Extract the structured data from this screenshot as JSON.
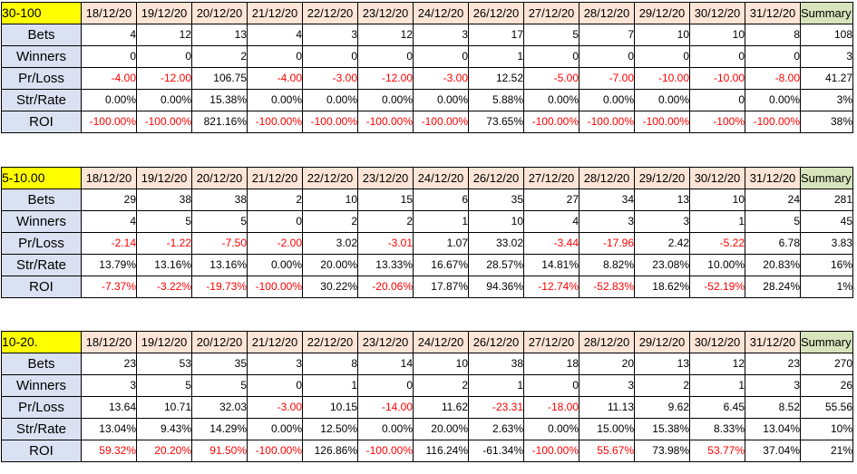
{
  "colors": {
    "title_bg": "#FFFF00",
    "date_header_bg": "#FCE4D6",
    "summary_header_bg": "#D8E4BC",
    "label_bg": "#D9E1F2",
    "negative_text": "#FF0000",
    "text": "#000000",
    "border": "#000000"
  },
  "layout_widths": {
    "label_col": 88,
    "date_col": 61,
    "summary_col": 58
  },
  "dates": [
    "18/12/20",
    "19/12/20",
    "20/12/20",
    "21/12/20",
    "22/12/20",
    "23/12/20",
    "24/12/20",
    "26/12/20",
    "27/12/20",
    "28/12/20",
    "29/12/20",
    "30/12/20",
    "31/12/20"
  ],
  "summary_header": "Summary",
  "row_labels": [
    "Bets",
    "Winners",
    "Pr/Loss",
    "Str/Rate",
    "ROI"
  ],
  "tables": [
    {
      "title": "30-100",
      "rows": [
        {
          "label": "Bets",
          "values": [
            "4",
            "12",
            "13",
            "4",
            "3",
            "12",
            "3",
            "17",
            "5",
            "7",
            "10",
            "10",
            "8",
            "108"
          ],
          "red": [
            0,
            0,
            0,
            0,
            0,
            0,
            0,
            0,
            0,
            0,
            0,
            0,
            0,
            0
          ]
        },
        {
          "label": "Winners",
          "values": [
            "0",
            "0",
            "2",
            "0",
            "0",
            "0",
            "0",
            "1",
            "0",
            "0",
            "0",
            "0",
            "0",
            "3"
          ],
          "red": [
            0,
            0,
            0,
            0,
            0,
            0,
            0,
            0,
            0,
            0,
            0,
            0,
            0,
            0
          ]
        },
        {
          "label": "Pr/Loss",
          "values": [
            "-4.00",
            "-12.00",
            "106.75",
            "-4.00",
            "-3.00",
            "-12.00",
            "-3.00",
            "12.52",
            "-5.00",
            "-7.00",
            "-10.00",
            "-10.00",
            "-8.00",
            "41.27"
          ],
          "red": [
            1,
            1,
            0,
            1,
            1,
            1,
            1,
            0,
            1,
            1,
            1,
            1,
            1,
            0
          ]
        },
        {
          "label": "Str/Rate",
          "values": [
            "0.00%",
            "0.00%",
            "15.38%",
            "0.00%",
            "0.00%",
            "0.00%",
            "0.00%",
            "5.88%",
            "0.00%",
            "0.00%",
            "0.00%",
            "0",
            "0.00%",
            "3%"
          ],
          "red": [
            0,
            0,
            0,
            0,
            0,
            0,
            0,
            0,
            0,
            0,
            0,
            0,
            0,
            0
          ]
        },
        {
          "label": "ROI",
          "values": [
            "-100.00%",
            "-100.00%",
            "821.16%",
            "-100.00%",
            "-100.00%",
            "-100.00%",
            "-100.00%",
            "73.65%",
            "-100.00%",
            "-100.00%",
            "-100.00%",
            "-100%",
            "-100.00%",
            "38%"
          ],
          "red": [
            1,
            1,
            0,
            1,
            1,
            1,
            1,
            0,
            1,
            1,
            1,
            1,
            1,
            0
          ]
        }
      ]
    },
    {
      "title": "5-10.00",
      "rows": [
        {
          "label": "Bets",
          "values": [
            "29",
            "38",
            "38",
            "2",
            "10",
            "15",
            "6",
            "35",
            "27",
            "34",
            "13",
            "10",
            "24",
            "281"
          ],
          "red": [
            0,
            0,
            0,
            0,
            0,
            0,
            0,
            0,
            0,
            0,
            0,
            0,
            0,
            0
          ]
        },
        {
          "label": "Winners",
          "values": [
            "4",
            "5",
            "5",
            "0",
            "2",
            "2",
            "1",
            "10",
            "4",
            "3",
            "3",
            "1",
            "5",
            "45"
          ],
          "red": [
            0,
            0,
            0,
            0,
            0,
            0,
            0,
            0,
            0,
            0,
            0,
            0,
            0,
            0
          ]
        },
        {
          "label": "Pr/Loss",
          "values": [
            "-2.14",
            "-1.22",
            "-7.50",
            "-2.00",
            "3.02",
            "-3.01",
            "1.07",
            "33.02",
            "-3.44",
            "-17.96",
            "2.42",
            "-5.22",
            "6.78",
            "3.83"
          ],
          "red": [
            1,
            1,
            1,
            1,
            0,
            1,
            0,
            0,
            1,
            1,
            0,
            1,
            0,
            0
          ]
        },
        {
          "label": "Str/Rate",
          "values": [
            "13.79%",
            "13.16%",
            "13.16%",
            "0.00%",
            "20.00%",
            "13.33%",
            "16.67%",
            "28.57%",
            "14.81%",
            "8.82%",
            "23.08%",
            "10.00%",
            "20.83%",
            "16%"
          ],
          "red": [
            0,
            0,
            0,
            0,
            0,
            0,
            0,
            0,
            0,
            0,
            0,
            0,
            0,
            0
          ]
        },
        {
          "label": "ROI",
          "values": [
            "-7.37%",
            "-3.22%",
            "-19.73%",
            "-100.00%",
            "30.22%",
            "-20.06%",
            "17.87%",
            "94.36%",
            "-12.74%",
            "-52.83%",
            "18.62%",
            "-52.19%",
            "28.24%",
            "1%"
          ],
          "red": [
            1,
            1,
            1,
            1,
            0,
            1,
            0,
            0,
            1,
            1,
            0,
            1,
            0,
            0
          ]
        }
      ]
    },
    {
      "title": "10-20.",
      "rows": [
        {
          "label": "Bets",
          "values": [
            "23",
            "53",
            "35",
            "3",
            "8",
            "14",
            "10",
            "38",
            "18",
            "20",
            "13",
            "12",
            "23",
            "270"
          ],
          "red": [
            0,
            0,
            0,
            0,
            0,
            0,
            0,
            0,
            0,
            0,
            0,
            0,
            0,
            0
          ]
        },
        {
          "label": "Winners",
          "values": [
            "3",
            "5",
            "5",
            "0",
            "1",
            "0",
            "2",
            "1",
            "0",
            "3",
            "2",
            "1",
            "3",
            "26"
          ],
          "red": [
            0,
            0,
            0,
            0,
            0,
            0,
            0,
            0,
            0,
            0,
            0,
            0,
            0,
            0
          ]
        },
        {
          "label": "Pr/Loss",
          "values": [
            "13.64",
            "10.71",
            "32.03",
            "-3.00",
            "10.15",
            "-14.00",
            "11.62",
            "-23.31",
            "-18.00",
            "11.13",
            "9.62",
            "6.45",
            "8.52",
            "55.56"
          ],
          "red": [
            0,
            0,
            0,
            1,
            0,
            1,
            0,
            1,
            1,
            0,
            0,
            0,
            0,
            0
          ]
        },
        {
          "label": "Str/Rate",
          "values": [
            "13.04%",
            "9.43%",
            "14.29%",
            "0.00%",
            "12.50%",
            "0.00%",
            "20.00%",
            "2.63%",
            "0.00%",
            "15.00%",
            "15.38%",
            "8.33%",
            "13.04%",
            "10%"
          ],
          "red": [
            0,
            0,
            0,
            0,
            0,
            0,
            0,
            0,
            0,
            0,
            0,
            0,
            0,
            0
          ]
        },
        {
          "label": "ROI",
          "values": [
            "59.32%",
            "20.20%",
            "91.50%",
            "-100.00%",
            "126.86%",
            "-100.00%",
            "116.24%",
            "-61.34%",
            "-100.00%",
            "55.67%",
            "73.98%",
            "53.77%",
            "37.04%",
            "21%"
          ],
          "red": [
            1,
            1,
            1,
            1,
            0,
            1,
            0,
            0,
            1,
            1,
            0,
            1,
            0,
            0
          ]
        }
      ]
    }
  ]
}
